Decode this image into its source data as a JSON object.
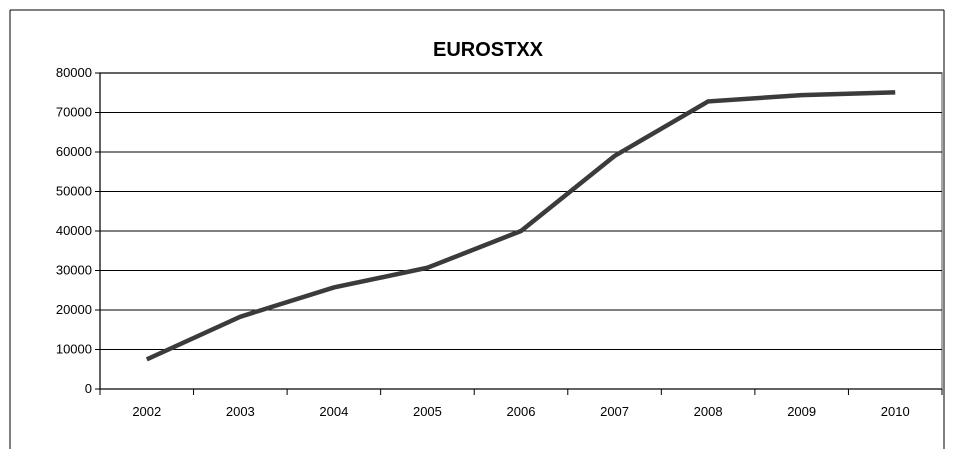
{
  "chart_data": {
    "type": "line",
    "title": "EUROSTXX",
    "xlabel": "",
    "ylabel": "",
    "categories": [
      "2002",
      "2003",
      "2004",
      "2005",
      "2006",
      "2007",
      "2008",
      "2009",
      "2010"
    ],
    "series": [
      {
        "values": [
          7500,
          18300,
          25700,
          30700,
          40000,
          59000,
          72800,
          74400,
          75100
        ]
      }
    ],
    "ylim": [
      0,
      80000
    ],
    "yticks": [
      "0",
      "10000",
      "20000",
      "30000",
      "40000",
      "50000",
      "60000",
      "70000",
      "80000"
    ],
    "grid": "horizontal",
    "legend": "none",
    "line_color": "#3b3b3b"
  }
}
